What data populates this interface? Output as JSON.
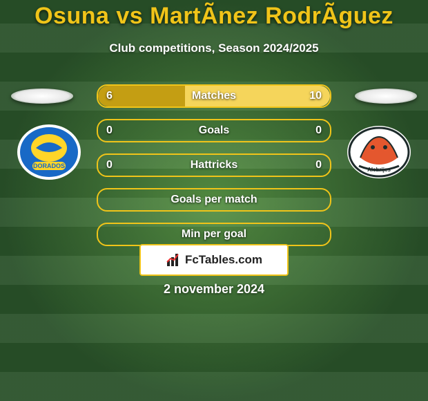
{
  "title": "Osuna vs MartÃ­nez RodrÃ­guez",
  "subtitle": "Club competitions, Season 2024/2025",
  "footer_date": "2 november 2024",
  "branding": {
    "text": "FcTables.com"
  },
  "colors": {
    "accent": "#f0c419",
    "bar_left_fill": "#c49e13",
    "bar_right_fill": "#f5d55b",
    "bar_border": "#f0c419",
    "text_white": "#ffffff"
  },
  "badges": {
    "left": {
      "name": "Dorados",
      "bg": "#1869c6",
      "accent": "#ffd528"
    },
    "right": {
      "name": "Alebrijes",
      "bg": "#ffffff",
      "accent": "#e4572e"
    }
  },
  "bars": [
    {
      "label": "Matches",
      "left": "6",
      "left_pct": 37.5,
      "right": "10",
      "right_pct": 62.5
    },
    {
      "label": "Goals",
      "left": "0",
      "left_pct": 0,
      "right": "0",
      "right_pct": 0
    },
    {
      "label": "Hattricks",
      "left": "0",
      "left_pct": 0,
      "right": "0",
      "right_pct": 0
    },
    {
      "label": "Goals per match",
      "left": "",
      "left_pct": 0,
      "right": "",
      "right_pct": 0
    },
    {
      "label": "Min per goal",
      "left": "",
      "left_pct": 0,
      "right": "",
      "right_pct": 0
    }
  ]
}
